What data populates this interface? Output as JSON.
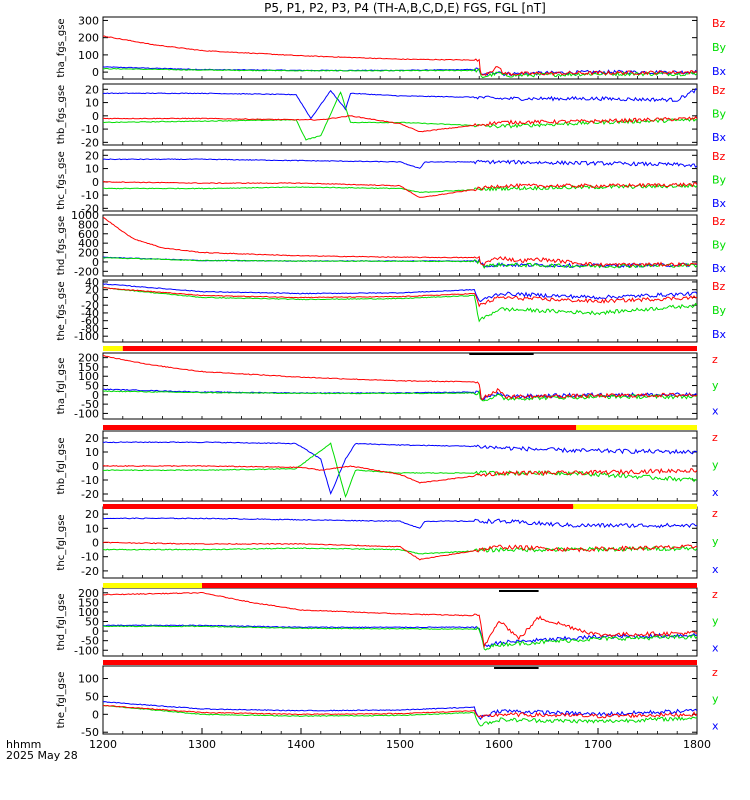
{
  "title": "P5, P1, P2, P3, P4 (TH-A,B,C,D,E) FGS, FGL [nT]",
  "time_axis": {
    "label": "hhmm",
    "date": "2025 May 28",
    "ticks": [
      "1200",
      "1300",
      "1400",
      "1500",
      "1600",
      "1700",
      "1800"
    ],
    "range": [
      1200,
      1800
    ]
  },
  "colors": {
    "x": "#0000ff",
    "y": "#00dd00",
    "z": "#ff0000",
    "yellow": "#ffff00",
    "red": "#ff0000",
    "black": "#000000"
  },
  "chart_data": [
    {
      "type": "line",
      "ylabel": "tha_fgs_gse",
      "ylim": [
        -40,
        320
      ],
      "yticks": [
        0,
        100,
        200,
        300
      ],
      "legend": [
        "Bz",
        "By",
        "Bx"
      ],
      "series": [
        {
          "name": "Bx",
          "x": [
            1200,
            1300,
            1400,
            1500,
            1580,
            1582,
            1600,
            1605,
            1700,
            1800
          ],
          "y": [
            30,
            15,
            10,
            10,
            15,
            -20,
            5,
            -10,
            0,
            0
          ]
        },
        {
          "name": "By",
          "x": [
            1200,
            1300,
            1400,
            1500,
            1580,
            1582,
            1600,
            1605,
            1700,
            1800
          ],
          "y": [
            20,
            12,
            8,
            8,
            10,
            -30,
            -5,
            -20,
            -10,
            -10
          ]
        },
        {
          "name": "Bz",
          "x": [
            1200,
            1250,
            1300,
            1400,
            1500,
            1575,
            1580,
            1582,
            1600,
            1605,
            1700,
            1800
          ],
          "y": [
            210,
            160,
            125,
            95,
            75,
            70,
            65,
            -20,
            30,
            -10,
            -5,
            0
          ]
        }
      ]
    },
    {
      "type": "line",
      "ylabel": "thb_fgs_gse",
      "ylim": [
        -22,
        24
      ],
      "yticks": [
        -20,
        -10,
        0,
        10,
        20
      ],
      "legend": [
        "Bz",
        "By",
        "Bx"
      ],
      "series": [
        {
          "name": "Bx",
          "x": [
            1200,
            1300,
            1395,
            1410,
            1430,
            1445,
            1450,
            1500,
            1580,
            1600,
            1700,
            1780,
            1800
          ],
          "y": [
            17,
            17,
            16,
            -2,
            19,
            5,
            17,
            15,
            14,
            13,
            13,
            12,
            20
          ]
        },
        {
          "name": "By",
          "x": [
            1200,
            1300,
            1395,
            1405,
            1420,
            1440,
            1450,
            1500,
            1600,
            1700,
            1800
          ],
          "y": [
            -5,
            -4,
            -3,
            -18,
            -15,
            18,
            -5,
            -5,
            -8,
            -5,
            -3
          ]
        },
        {
          "name": "Bz",
          "x": [
            1200,
            1300,
            1400,
            1420,
            1450,
            1500,
            1520,
            1600,
            1700,
            1800
          ],
          "y": [
            -2,
            -2,
            -3,
            -3,
            0,
            -6,
            -12,
            -5,
            -4,
            -2
          ]
        }
      ]
    },
    {
      "type": "line",
      "ylabel": "thc_fgs_gse",
      "ylim": [
        -22,
        24
      ],
      "yticks": [
        -20,
        -10,
        0,
        10,
        20
      ],
      "legend": [
        "Bz",
        "By",
        "Bx"
      ],
      "series": [
        {
          "name": "Bx",
          "x": [
            1200,
            1300,
            1400,
            1500,
            1520,
            1525,
            1600,
            1700,
            1780,
            1800
          ],
          "y": [
            17,
            17,
            16,
            15,
            10,
            15,
            15,
            14,
            13,
            12
          ]
        },
        {
          "name": "By",
          "x": [
            1200,
            1300,
            1400,
            1500,
            1520,
            1600,
            1700,
            1800
          ],
          "y": [
            -5,
            -5,
            -4,
            -5,
            -8,
            -5,
            -4,
            -3
          ]
        },
        {
          "name": "Bz",
          "x": [
            1200,
            1300,
            1400,
            1500,
            1520,
            1600,
            1700,
            1800
          ],
          "y": [
            0,
            -1,
            -1,
            -3,
            -12,
            -3,
            -3,
            -2
          ]
        }
      ]
    },
    {
      "type": "line",
      "ylabel": "thd_fgs_gse",
      "ylim": [
        -300,
        1000
      ],
      "yticks": [
        -200,
        0,
        200,
        400,
        600,
        800,
        1000
      ],
      "legend": [
        "Bz",
        "By",
        "Bx"
      ],
      "series": [
        {
          "name": "Bx",
          "x": [
            1200,
            1300,
            1400,
            1580,
            1585,
            1600,
            1700,
            1800
          ],
          "y": [
            100,
            30,
            20,
            20,
            -80,
            -60,
            -80,
            -60
          ]
        },
        {
          "name": "By",
          "x": [
            1200,
            1300,
            1400,
            1580,
            1585,
            1600,
            1700,
            1800
          ],
          "y": [
            90,
            30,
            20,
            10,
            -90,
            -60,
            -90,
            -70
          ]
        },
        {
          "name": "Bz",
          "x": [
            1200,
            1230,
            1260,
            1300,
            1400,
            1500,
            1580,
            1582,
            1600,
            1620,
            1640,
            1700,
            1800
          ],
          "y": [
            950,
            500,
            300,
            200,
            130,
            100,
            90,
            -60,
            100,
            20,
            60,
            -60,
            -50
          ]
        }
      ]
    },
    {
      "type": "line",
      "ylabel": "the_fgs_gse",
      "ylim": [
        -115,
        45
      ],
      "yticks": [
        -100,
        -80,
        -60,
        -40,
        -20,
        0,
        20,
        40
      ],
      "legend": [
        "Bz",
        "By",
        "Bx"
      ],
      "series": [
        {
          "name": "Bx",
          "x": [
            1200,
            1300,
            1400,
            1500,
            1575,
            1580,
            1600,
            1700,
            1800
          ],
          "y": [
            35,
            15,
            10,
            12,
            20,
            -10,
            10,
            0,
            10
          ]
        },
        {
          "name": "By",
          "x": [
            1200,
            1300,
            1400,
            1500,
            1575,
            1580,
            1600,
            1700,
            1800
          ],
          "y": [
            25,
            0,
            -5,
            -3,
            5,
            -60,
            -30,
            -40,
            -20
          ]
        },
        {
          "name": "Bz",
          "x": [
            1200,
            1300,
            1400,
            1500,
            1575,
            1580,
            1600,
            1700,
            1800
          ],
          "y": [
            25,
            5,
            0,
            2,
            10,
            -20,
            0,
            -10,
            0
          ]
        }
      ]
    },
    {
      "type": "line",
      "ylabel": "tha_fgl_gse",
      "ylim": [
        -130,
        225
      ],
      "yticks": [
        -100,
        -50,
        0,
        50,
        100,
        150,
        200
      ],
      "legend": [
        "z",
        "y",
        "x"
      ],
      "series": [
        {
          "name": "x",
          "x": [
            1200,
            1300,
            1400,
            1500,
            1580,
            1582,
            1600,
            1605,
            1700,
            1800
          ],
          "y": [
            30,
            15,
            10,
            10,
            15,
            -20,
            5,
            -10,
            0,
            0
          ]
        },
        {
          "name": "y",
          "x": [
            1200,
            1300,
            1400,
            1500,
            1580,
            1582,
            1600,
            1605,
            1700,
            1800
          ],
          "y": [
            20,
            12,
            8,
            8,
            10,
            -30,
            -5,
            -20,
            -10,
            -10
          ]
        },
        {
          "name": "z",
          "x": [
            1200,
            1250,
            1300,
            1400,
            1500,
            1575,
            1580,
            1582,
            1600,
            1605,
            1700,
            1800
          ],
          "y": [
            210,
            160,
            125,
            95,
            75,
            70,
            65,
            -20,
            30,
            -10,
            -5,
            0
          ]
        }
      ]
    },
    {
      "type": "line",
      "ylabel": "thb_fgl_gse",
      "ylim": [
        -25,
        25
      ],
      "yticks": [
        -20,
        -10,
        0,
        10,
        20
      ],
      "legend": [
        "z",
        "y",
        "x"
      ],
      "series": [
        {
          "name": "x",
          "x": [
            1200,
            1300,
            1395,
            1420,
            1430,
            1445,
            1455,
            1500,
            1580,
            1600,
            1675,
            1800
          ],
          "y": [
            17,
            17,
            16,
            5,
            -20,
            5,
            16,
            15,
            14,
            13,
            11,
            10
          ]
        },
        {
          "name": "y",
          "x": [
            1200,
            1300,
            1395,
            1410,
            1430,
            1445,
            1455,
            1500,
            1600,
            1675,
            1800
          ],
          "y": [
            -3,
            -3,
            -2,
            6,
            16,
            -22,
            -3,
            -5,
            -5,
            -5,
            -10
          ]
        },
        {
          "name": "z",
          "x": [
            1200,
            1300,
            1400,
            1420,
            1450,
            1500,
            1520,
            1600,
            1675,
            1800
          ],
          "y": [
            0,
            0,
            -1,
            -3,
            0,
            -6,
            -12,
            -5,
            -5,
            -3
          ]
        }
      ]
    },
    {
      "type": "line",
      "ylabel": "thc_fgl_gse",
      "ylim": [
        -25,
        25
      ],
      "yticks": [
        -20,
        -10,
        0,
        10,
        20
      ],
      "legend": [
        "z",
        "y",
        "x"
      ],
      "series": [
        {
          "name": "x",
          "x": [
            1200,
            1300,
            1400,
            1500,
            1520,
            1525,
            1600,
            1675,
            1800
          ],
          "y": [
            17,
            17,
            16,
            15,
            10,
            15,
            15,
            12,
            12
          ]
        },
        {
          "name": "y",
          "x": [
            1200,
            1300,
            1400,
            1500,
            1520,
            1600,
            1675,
            1800
          ],
          "y": [
            -5,
            -5,
            -4,
            -5,
            -8,
            -5,
            -5,
            -4
          ]
        },
        {
          "name": "z",
          "x": [
            1200,
            1300,
            1400,
            1500,
            1520,
            1600,
            1675,
            1800
          ],
          "y": [
            0,
            -1,
            -1,
            -3,
            -12,
            -3,
            -5,
            -3
          ]
        }
      ]
    },
    {
      "type": "line",
      "ylabel": "thd_fgl_gse",
      "ylim": [
        -130,
        225
      ],
      "yticks": [
        -100,
        -50,
        0,
        50,
        100,
        150,
        200
      ],
      "legend": [
        "z",
        "y",
        "x"
      ],
      "series": [
        {
          "name": "x",
          "x": [
            1200,
            1300,
            1400,
            1580,
            1585,
            1600,
            1700,
            1800
          ],
          "y": [
            30,
            30,
            20,
            20,
            -80,
            -60,
            -30,
            -20
          ]
        },
        {
          "name": "y",
          "x": [
            1200,
            1300,
            1400,
            1580,
            1585,
            1600,
            1700,
            1800
          ],
          "y": [
            25,
            25,
            15,
            10,
            -90,
            -70,
            -40,
            -30
          ]
        },
        {
          "name": "z",
          "x": [
            1200,
            1300,
            1350,
            1400,
            1500,
            1580,
            1585,
            1600,
            1620,
            1640,
            1680,
            1700,
            1800
          ],
          "y": [
            190,
            200,
            150,
            110,
            90,
            80,
            -80,
            60,
            -40,
            70,
            10,
            -20,
            -10
          ]
        }
      ]
    },
    {
      "type": "line",
      "ylabel": "the_fgl_gse",
      "ylim": [
        -55,
        135
      ],
      "yticks": [
        -50,
        0,
        50,
        100
      ],
      "legend": [
        "z",
        "y",
        "x"
      ],
      "series": [
        {
          "name": "x",
          "x": [
            1200,
            1300,
            1400,
            1500,
            1575,
            1580,
            1600,
            1700,
            1800
          ],
          "y": [
            35,
            15,
            10,
            12,
            20,
            -10,
            10,
            0,
            10
          ]
        },
        {
          "name": "y",
          "x": [
            1200,
            1300,
            1400,
            1500,
            1575,
            1580,
            1600,
            1700,
            1800
          ],
          "y": [
            25,
            0,
            -5,
            -3,
            5,
            -30,
            -15,
            -20,
            -10
          ]
        },
        {
          "name": "z",
          "x": [
            1200,
            1300,
            1400,
            1500,
            1575,
            1580,
            1600,
            1700,
            1800
          ],
          "y": [
            25,
            5,
            0,
            2,
            10,
            -10,
            0,
            -5,
            0
          ]
        }
      ]
    }
  ],
  "status_bars": [
    {
      "segments": [
        {
          "color": "yellow",
          "from": 1200,
          "to": 1220
        },
        {
          "color": "red",
          "from": 1220,
          "to": 1800
        }
      ],
      "mark": {
        "from": 1570,
        "to": 1635
      }
    },
    {
      "segments": [
        {
          "color": "red",
          "from": 1200,
          "to": 1678
        },
        {
          "color": "yellow",
          "from": 1678,
          "to": 1800
        }
      ]
    },
    {
      "segments": [
        {
          "color": "red",
          "from": 1200,
          "to": 1675
        },
        {
          "color": "yellow",
          "from": 1675,
          "to": 1800
        }
      ]
    },
    {
      "segments": [
        {
          "color": "yellow",
          "from": 1200,
          "to": 1300
        },
        {
          "color": "red",
          "from": 1300,
          "to": 1800
        }
      ],
      "mark": {
        "from": 1600,
        "to": 1640
      }
    },
    {
      "segments": [
        {
          "color": "red",
          "from": 1200,
          "to": 1800
        }
      ],
      "mark": {
        "from": 1595,
        "to": 1640
      }
    }
  ]
}
